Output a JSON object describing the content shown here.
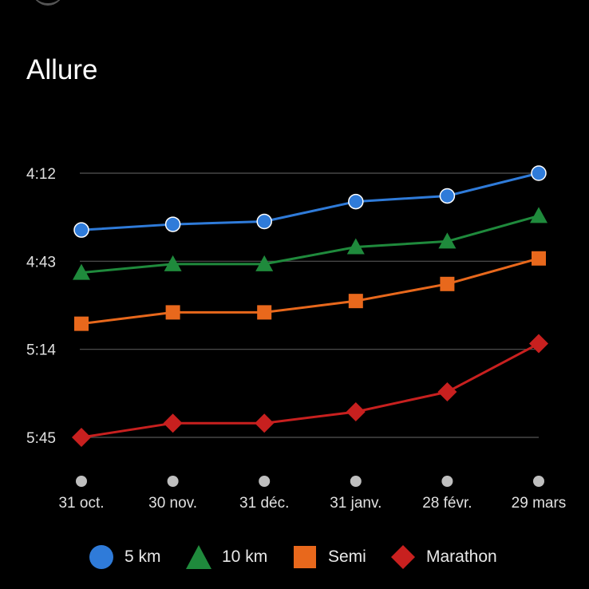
{
  "header": {
    "title": "Allure"
  },
  "colors": {
    "5km": "#2f7bd9",
    "10km": "#1f8a3c",
    "semi": "#e8681c",
    "marathon": "#c8201f",
    "grid": "#555555",
    "dot": "#bfbfbf"
  },
  "chart_data": {
    "type": "line",
    "title": "Allure",
    "x": [
      "31 oct.",
      "30 nov.",
      "31 déc.",
      "31 janv.",
      "28 févr.",
      "29 mars"
    ],
    "yticks": [
      "4:12",
      "4:43",
      "5:14",
      "5:45"
    ],
    "ytick_seconds": [
      252,
      283,
      314,
      345
    ],
    "ylim_seconds": [
      252,
      345
    ],
    "y_inverted": true,
    "grid": true,
    "legend": "bottom",
    "series": [
      {
        "name": "5 km",
        "marker": "circle",
        "color": "#2f7bd9",
        "values": [
          "4:32",
          "4:30",
          "4:29",
          "4:22",
          "4:20",
          "4:12"
        ]
      },
      {
        "name": "10 km",
        "marker": "triangle",
        "color": "#1f8a3c",
        "values": [
          "4:47",
          "4:44",
          "4:44",
          "4:38",
          "4:36",
          "4:27"
        ]
      },
      {
        "name": "Semi",
        "marker": "square",
        "color": "#e8681c",
        "values": [
          "5:05",
          "5:01",
          "5:01",
          "4:57",
          "4:51",
          "4:42"
        ]
      },
      {
        "name": "Marathon",
        "marker": "diamond",
        "color": "#c8201f",
        "values": [
          "5:45",
          "5:40",
          "5:40",
          "5:36",
          "5:29",
          "5:12"
        ]
      }
    ]
  }
}
